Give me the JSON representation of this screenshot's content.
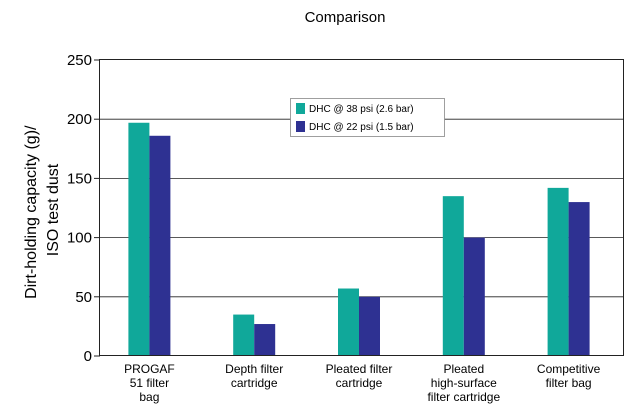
{
  "chart_data": {
    "type": "bar",
    "title": "Comparison",
    "ylabel_lines": [
      "Dirt-holding capacity (g)/",
      "ISO test dust"
    ],
    "xlabel": "",
    "ylim": [
      0,
      250
    ],
    "yticks": [
      0,
      50,
      100,
      150,
      200,
      250
    ],
    "grid": "horizontal",
    "legend_position": "top-center",
    "categories": [
      [
        "PROGAF",
        "51 filter",
        "bag"
      ],
      [
        "Depth filter",
        "cartridge"
      ],
      [
        "Pleated filter",
        "cartridge"
      ],
      [
        "Pleated",
        "high-surface",
        "filter cartridge"
      ],
      [
        "Competitive",
        "filter bag"
      ]
    ],
    "series": [
      {
        "name": "DHC @ 38 psi (2.6 bar)",
        "color": "#10a89a",
        "values": [
          197,
          35,
          57,
          135,
          142
        ]
      },
      {
        "name": "DHC @ 22 psi (1.5 bar)",
        "color": "#2e3192",
        "values": [
          186,
          27,
          50,
          100,
          130
        ]
      }
    ]
  }
}
